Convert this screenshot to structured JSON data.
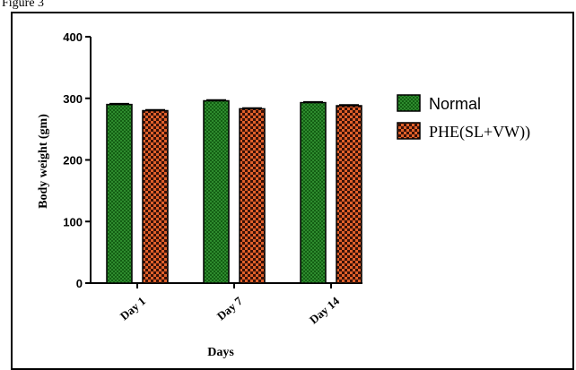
{
  "figure_label": "Figure 3",
  "chart_data": {
    "type": "bar",
    "categories": [
      "Day 1",
      "Day 7",
      "Day 14"
    ],
    "series": [
      {
        "name": "Normal",
        "values": [
          290,
          296,
          293
        ],
        "color": "#2e8b2e",
        "pattern_color": "#135f13"
      },
      {
        "name": "PHE(SL+VW))",
        "values": [
          280,
          283,
          288
        ],
        "color": "#e0602a",
        "pattern_color": "#3a1208"
      }
    ],
    "xlabel": "Days",
    "ylabel": "Body weight (gm)",
    "ylim": [
      0,
      400
    ],
    "yticks": [
      "0",
      "100",
      "200",
      "300",
      "400"
    ],
    "grid": false,
    "legend_position": "right"
  }
}
